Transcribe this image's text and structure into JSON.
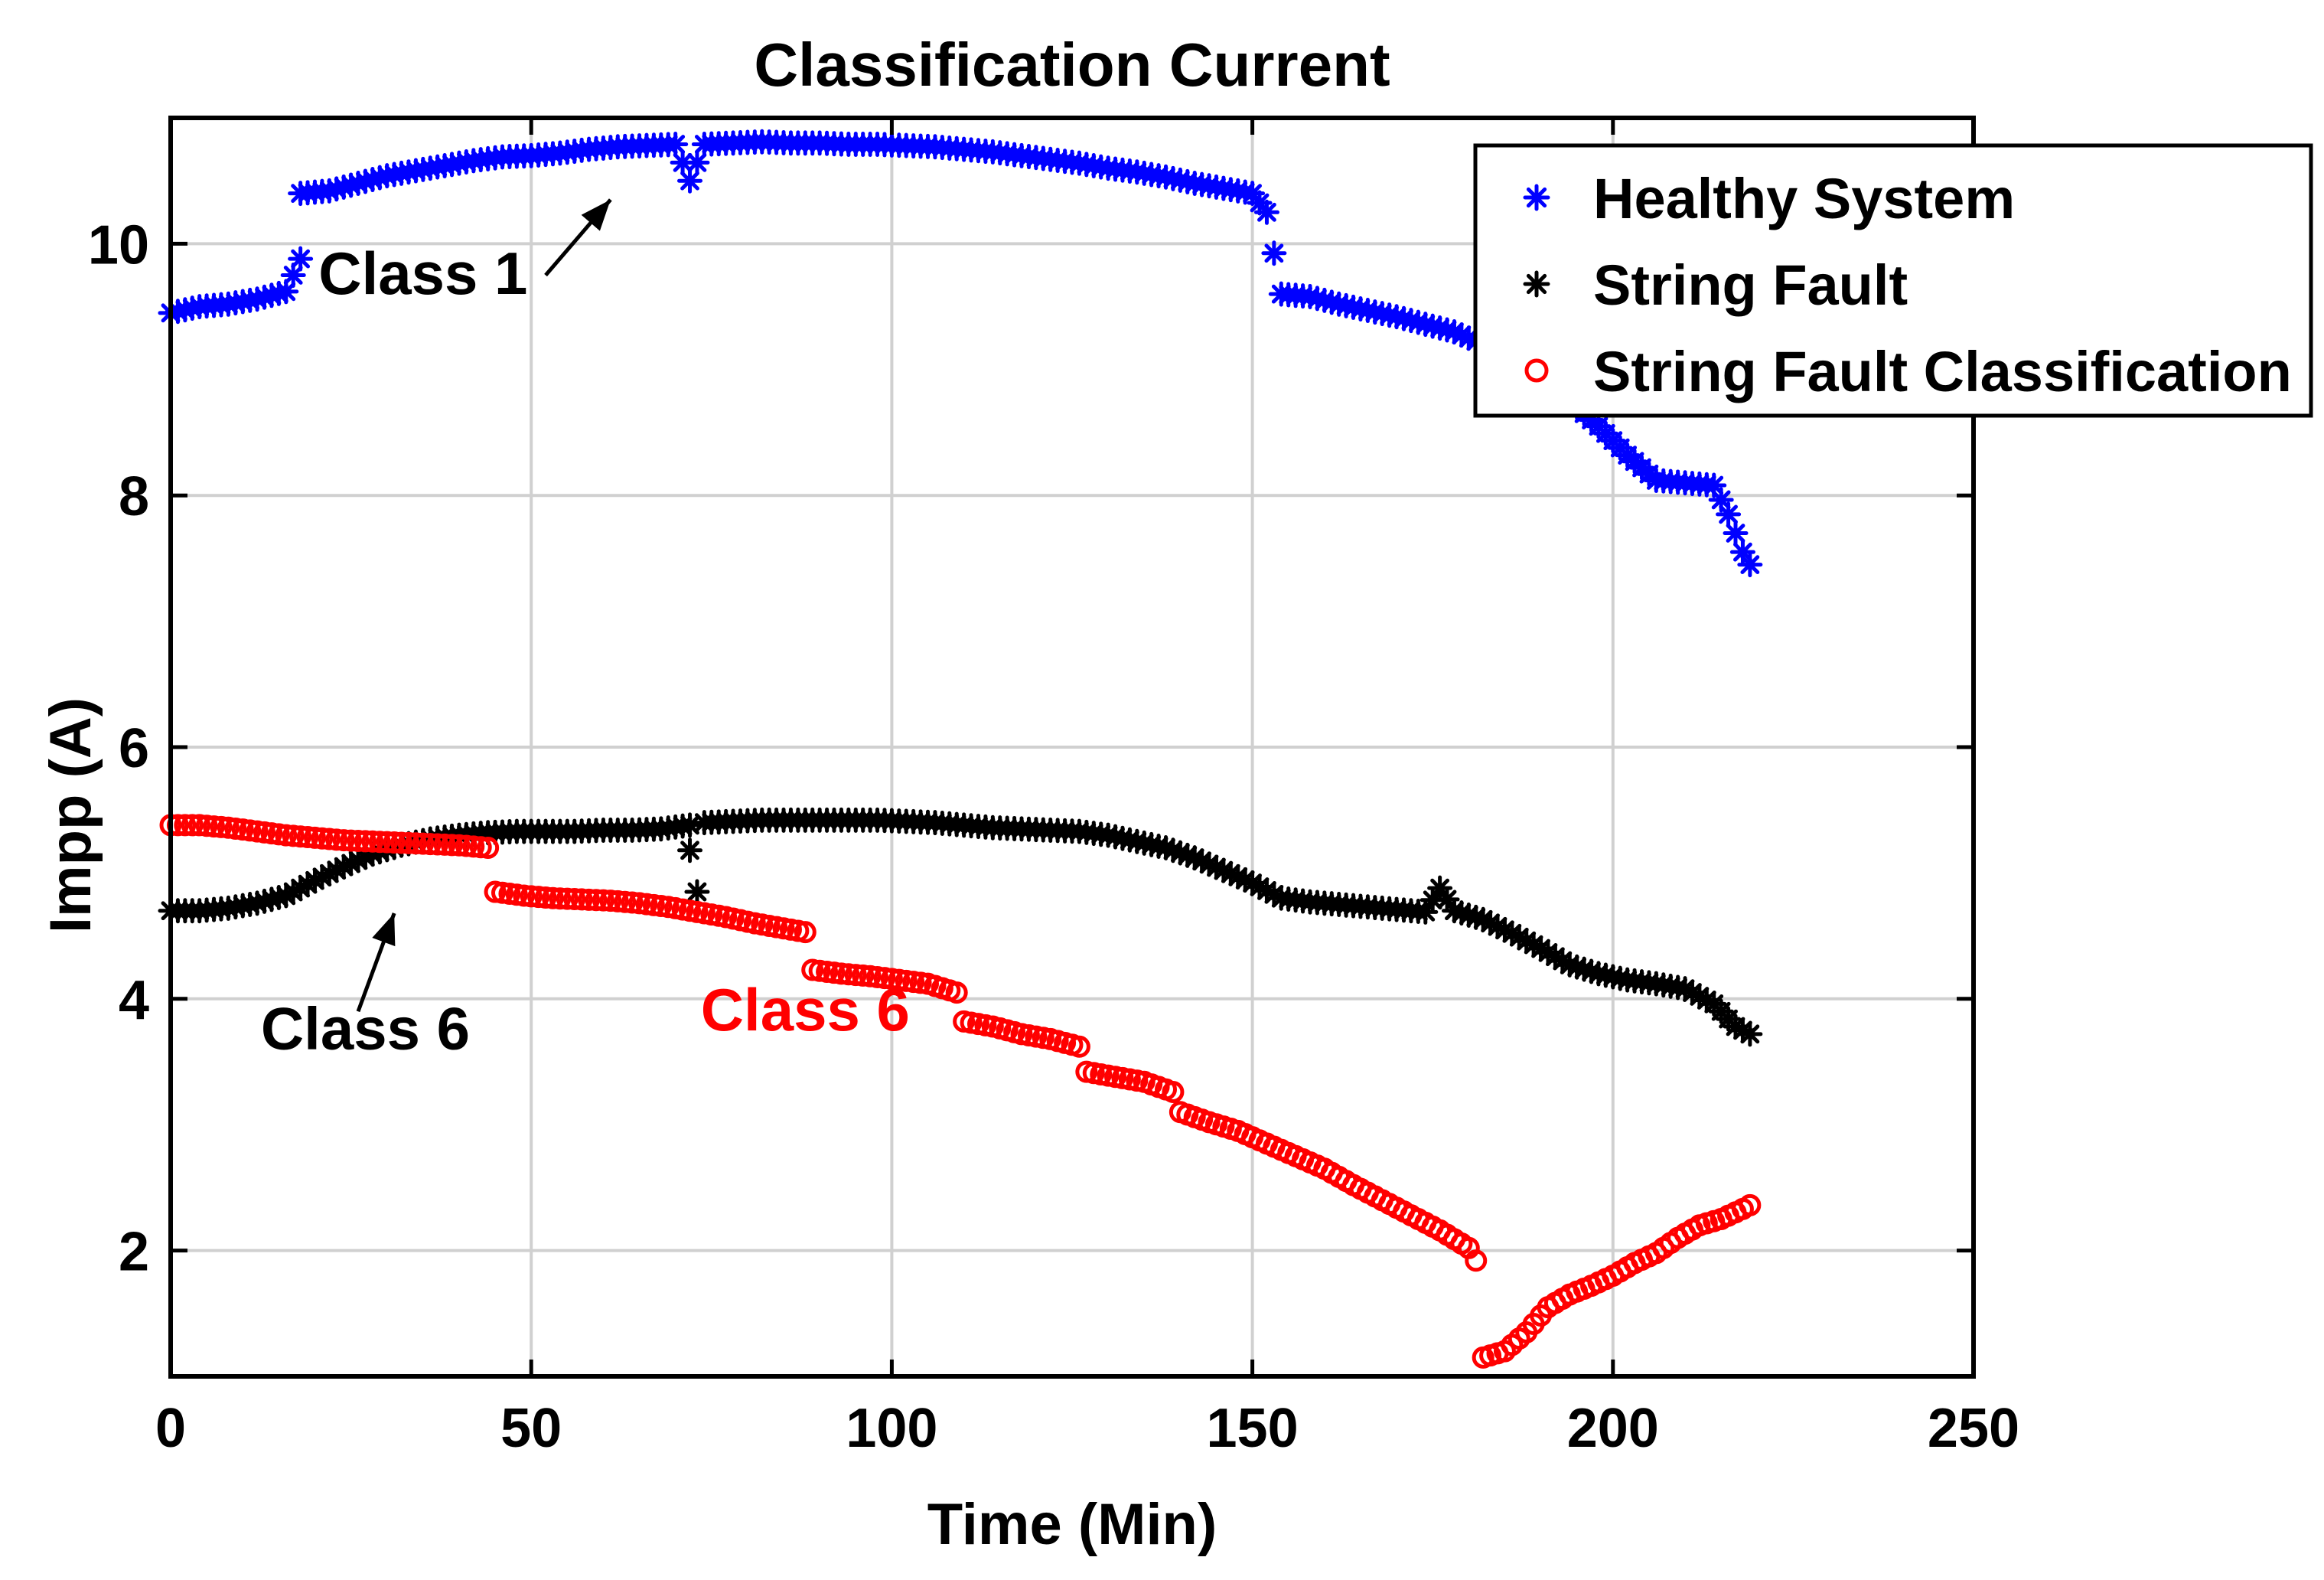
{
  "chart_data": {
    "type": "scatter",
    "title": "Classification Current",
    "xlabel": "Time (Min)",
    "ylabel": "Impp (A)",
    "xlim": [
      0,
      250
    ],
    "ylim": [
      1,
      11
    ],
    "xticks": [
      0,
      50,
      100,
      150,
      200,
      250
    ],
    "yticks": [
      2,
      4,
      6,
      8,
      10
    ],
    "grid": true,
    "legend_position": "top-right",
    "series": [
      {
        "name": "Healthy System",
        "marker": "asterisk",
        "color": "#0000ff",
        "points": [
          [
            0,
            9.45
          ],
          [
            4,
            9.5
          ],
          [
            8,
            9.52
          ],
          [
            12,
            9.56
          ],
          [
            16,
            9.62
          ],
          [
            18,
            9.88
          ],
          [
            18,
            10.4
          ],
          [
            22,
            10.42
          ],
          [
            26,
            10.48
          ],
          [
            30,
            10.54
          ],
          [
            34,
            10.58
          ],
          [
            38,
            10.62
          ],
          [
            42,
            10.66
          ],
          [
            46,
            10.69
          ],
          [
            50,
            10.7
          ],
          [
            54,
            10.72
          ],
          [
            58,
            10.75
          ],
          [
            62,
            10.77
          ],
          [
            66,
            10.78
          ],
          [
            70,
            10.79
          ],
          [
            72,
            10.5
          ],
          [
            74,
            10.79
          ],
          [
            78,
            10.8
          ],
          [
            82,
            10.81
          ],
          [
            86,
            10.8
          ],
          [
            90,
            10.8
          ],
          [
            94,
            10.79
          ],
          [
            98,
            10.79
          ],
          [
            102,
            10.78
          ],
          [
            106,
            10.77
          ],
          [
            110,
            10.75
          ],
          [
            114,
            10.73
          ],
          [
            118,
            10.7
          ],
          [
            122,
            10.67
          ],
          [
            126,
            10.64
          ],
          [
            130,
            10.6
          ],
          [
            134,
            10.57
          ],
          [
            138,
            10.53
          ],
          [
            142,
            10.48
          ],
          [
            146,
            10.44
          ],
          [
            150,
            10.4
          ],
          [
            152,
            10.25
          ],
          [
            154,
            9.6
          ],
          [
            158,
            9.58
          ],
          [
            162,
            9.52
          ],
          [
            166,
            9.47
          ],
          [
            170,
            9.42
          ],
          [
            174,
            9.36
          ],
          [
            178,
            9.3
          ],
          [
            182,
            9.2
          ],
          [
            186,
            9.1
          ],
          [
            190,
            8.95
          ],
          [
            194,
            8.75
          ],
          [
            198,
            8.55
          ],
          [
            202,
            8.32
          ],
          [
            206,
            8.12
          ],
          [
            210,
            8.1
          ],
          [
            214,
            8.08
          ],
          [
            216,
            7.85
          ],
          [
            218,
            7.55
          ],
          [
            219,
            7.45
          ]
        ]
      },
      {
        "name": "String Fault",
        "marker": "asterisk",
        "color": "#000000",
        "points": [
          [
            0,
            4.7
          ],
          [
            4,
            4.7
          ],
          [
            8,
            4.72
          ],
          [
            12,
            4.76
          ],
          [
            16,
            4.82
          ],
          [
            20,
            4.94
          ],
          [
            24,
            5.05
          ],
          [
            28,
            5.15
          ],
          [
            32,
            5.22
          ],
          [
            36,
            5.27
          ],
          [
            40,
            5.3
          ],
          [
            44,
            5.32
          ],
          [
            48,
            5.33
          ],
          [
            52,
            5.33
          ],
          [
            56,
            5.33
          ],
          [
            60,
            5.34
          ],
          [
            64,
            5.34
          ],
          [
            68,
            5.35
          ],
          [
            72,
            5.38
          ],
          [
            72,
            5.18
          ],
          [
            73,
            4.85
          ],
          [
            74,
            5.4
          ],
          [
            78,
            5.41
          ],
          [
            82,
            5.42
          ],
          [
            86,
            5.42
          ],
          [
            90,
            5.42
          ],
          [
            94,
            5.42
          ],
          [
            98,
            5.42
          ],
          [
            102,
            5.41
          ],
          [
            106,
            5.4
          ],
          [
            110,
            5.38
          ],
          [
            114,
            5.36
          ],
          [
            118,
            5.35
          ],
          [
            122,
            5.34
          ],
          [
            126,
            5.33
          ],
          [
            130,
            5.3
          ],
          [
            134,
            5.25
          ],
          [
            138,
            5.2
          ],
          [
            142,
            5.12
          ],
          [
            146,
            5.02
          ],
          [
            150,
            4.92
          ],
          [
            154,
            4.8
          ],
          [
            158,
            4.77
          ],
          [
            162,
            4.75
          ],
          [
            166,
            4.73
          ],
          [
            170,
            4.71
          ],
          [
            174,
            4.69
          ],
          [
            176,
            4.88
          ],
          [
            178,
            4.7
          ],
          [
            182,
            4.63
          ],
          [
            186,
            4.52
          ],
          [
            190,
            4.4
          ],
          [
            194,
            4.27
          ],
          [
            198,
            4.2
          ],
          [
            202,
            4.15
          ],
          [
            206,
            4.12
          ],
          [
            210,
            4.08
          ],
          [
            214,
            3.96
          ],
          [
            217,
            3.78
          ],
          [
            219,
            3.72
          ]
        ]
      },
      {
        "name": "String Fault Classification",
        "marker": "circle",
        "color": "#ff0000",
        "points": [
          [
            0,
            5.38
          ],
          [
            4,
            5.38
          ],
          [
            8,
            5.36
          ],
          [
            12,
            5.33
          ],
          [
            16,
            5.3
          ],
          [
            20,
            5.28
          ],
          [
            24,
            5.26
          ],
          [
            28,
            5.25
          ],
          [
            32,
            5.24
          ],
          [
            36,
            5.23
          ],
          [
            40,
            5.22
          ],
          [
            44,
            5.2
          ],
          [
            45,
            4.85
          ],
          [
            49,
            4.82
          ],
          [
            53,
            4.8
          ],
          [
            57,
            4.79
          ],
          [
            61,
            4.78
          ],
          [
            65,
            4.76
          ],
          [
            69,
            4.73
          ],
          [
            73,
            4.69
          ],
          [
            77,
            4.65
          ],
          [
            81,
            4.6
          ],
          [
            85,
            4.56
          ],
          [
            88,
            4.53
          ],
          [
            89,
            4.23
          ],
          [
            93,
            4.2
          ],
          [
            97,
            4.18
          ],
          [
            101,
            4.15
          ],
          [
            105,
            4.12
          ],
          [
            109,
            4.05
          ],
          [
            110,
            3.82
          ],
          [
            114,
            3.78
          ],
          [
            118,
            3.72
          ],
          [
            122,
            3.68
          ],
          [
            126,
            3.62
          ],
          [
            127,
            3.42
          ],
          [
            131,
            3.38
          ],
          [
            135,
            3.34
          ],
          [
            139,
            3.26
          ],
          [
            140,
            3.1
          ],
          [
            144,
            3.02
          ],
          [
            148,
            2.95
          ],
          [
            152,
            2.85
          ],
          [
            156,
            2.75
          ],
          [
            160,
            2.65
          ],
          [
            164,
            2.52
          ],
          [
            168,
            2.4
          ],
          [
            172,
            2.28
          ],
          [
            176,
            2.16
          ],
          [
            180,
            2.02
          ],
          [
            181,
            1.92
          ],
          [
            182,
            1.15
          ],
          [
            185,
            1.2
          ],
          [
            188,
            1.35
          ],
          [
            191,
            1.55
          ],
          [
            194,
            1.65
          ],
          [
            197,
            1.72
          ],
          [
            200,
            1.8
          ],
          [
            203,
            1.9
          ],
          [
            206,
            1.98
          ],
          [
            209,
            2.1
          ],
          [
            212,
            2.2
          ],
          [
            215,
            2.25
          ],
          [
            218,
            2.33
          ],
          [
            219,
            2.36
          ]
        ]
      }
    ],
    "annotations": [
      {
        "text": "Class 1",
        "color": "#000000",
        "label_at": [
          35,
          9.6
        ],
        "arrow_from": [
          52,
          9.75
        ],
        "arrow_to": [
          61,
          10.35
        ]
      },
      {
        "text": "Class 6",
        "color": "#000000",
        "label_at": [
          27,
          3.6
        ],
        "arrow_from": [
          26,
          3.9
        ],
        "arrow_to": [
          31,
          4.68
        ]
      },
      {
        "text": "Class 6",
        "color": "#ff0000",
        "label_at": [
          88,
          3.75
        ]
      }
    ]
  }
}
